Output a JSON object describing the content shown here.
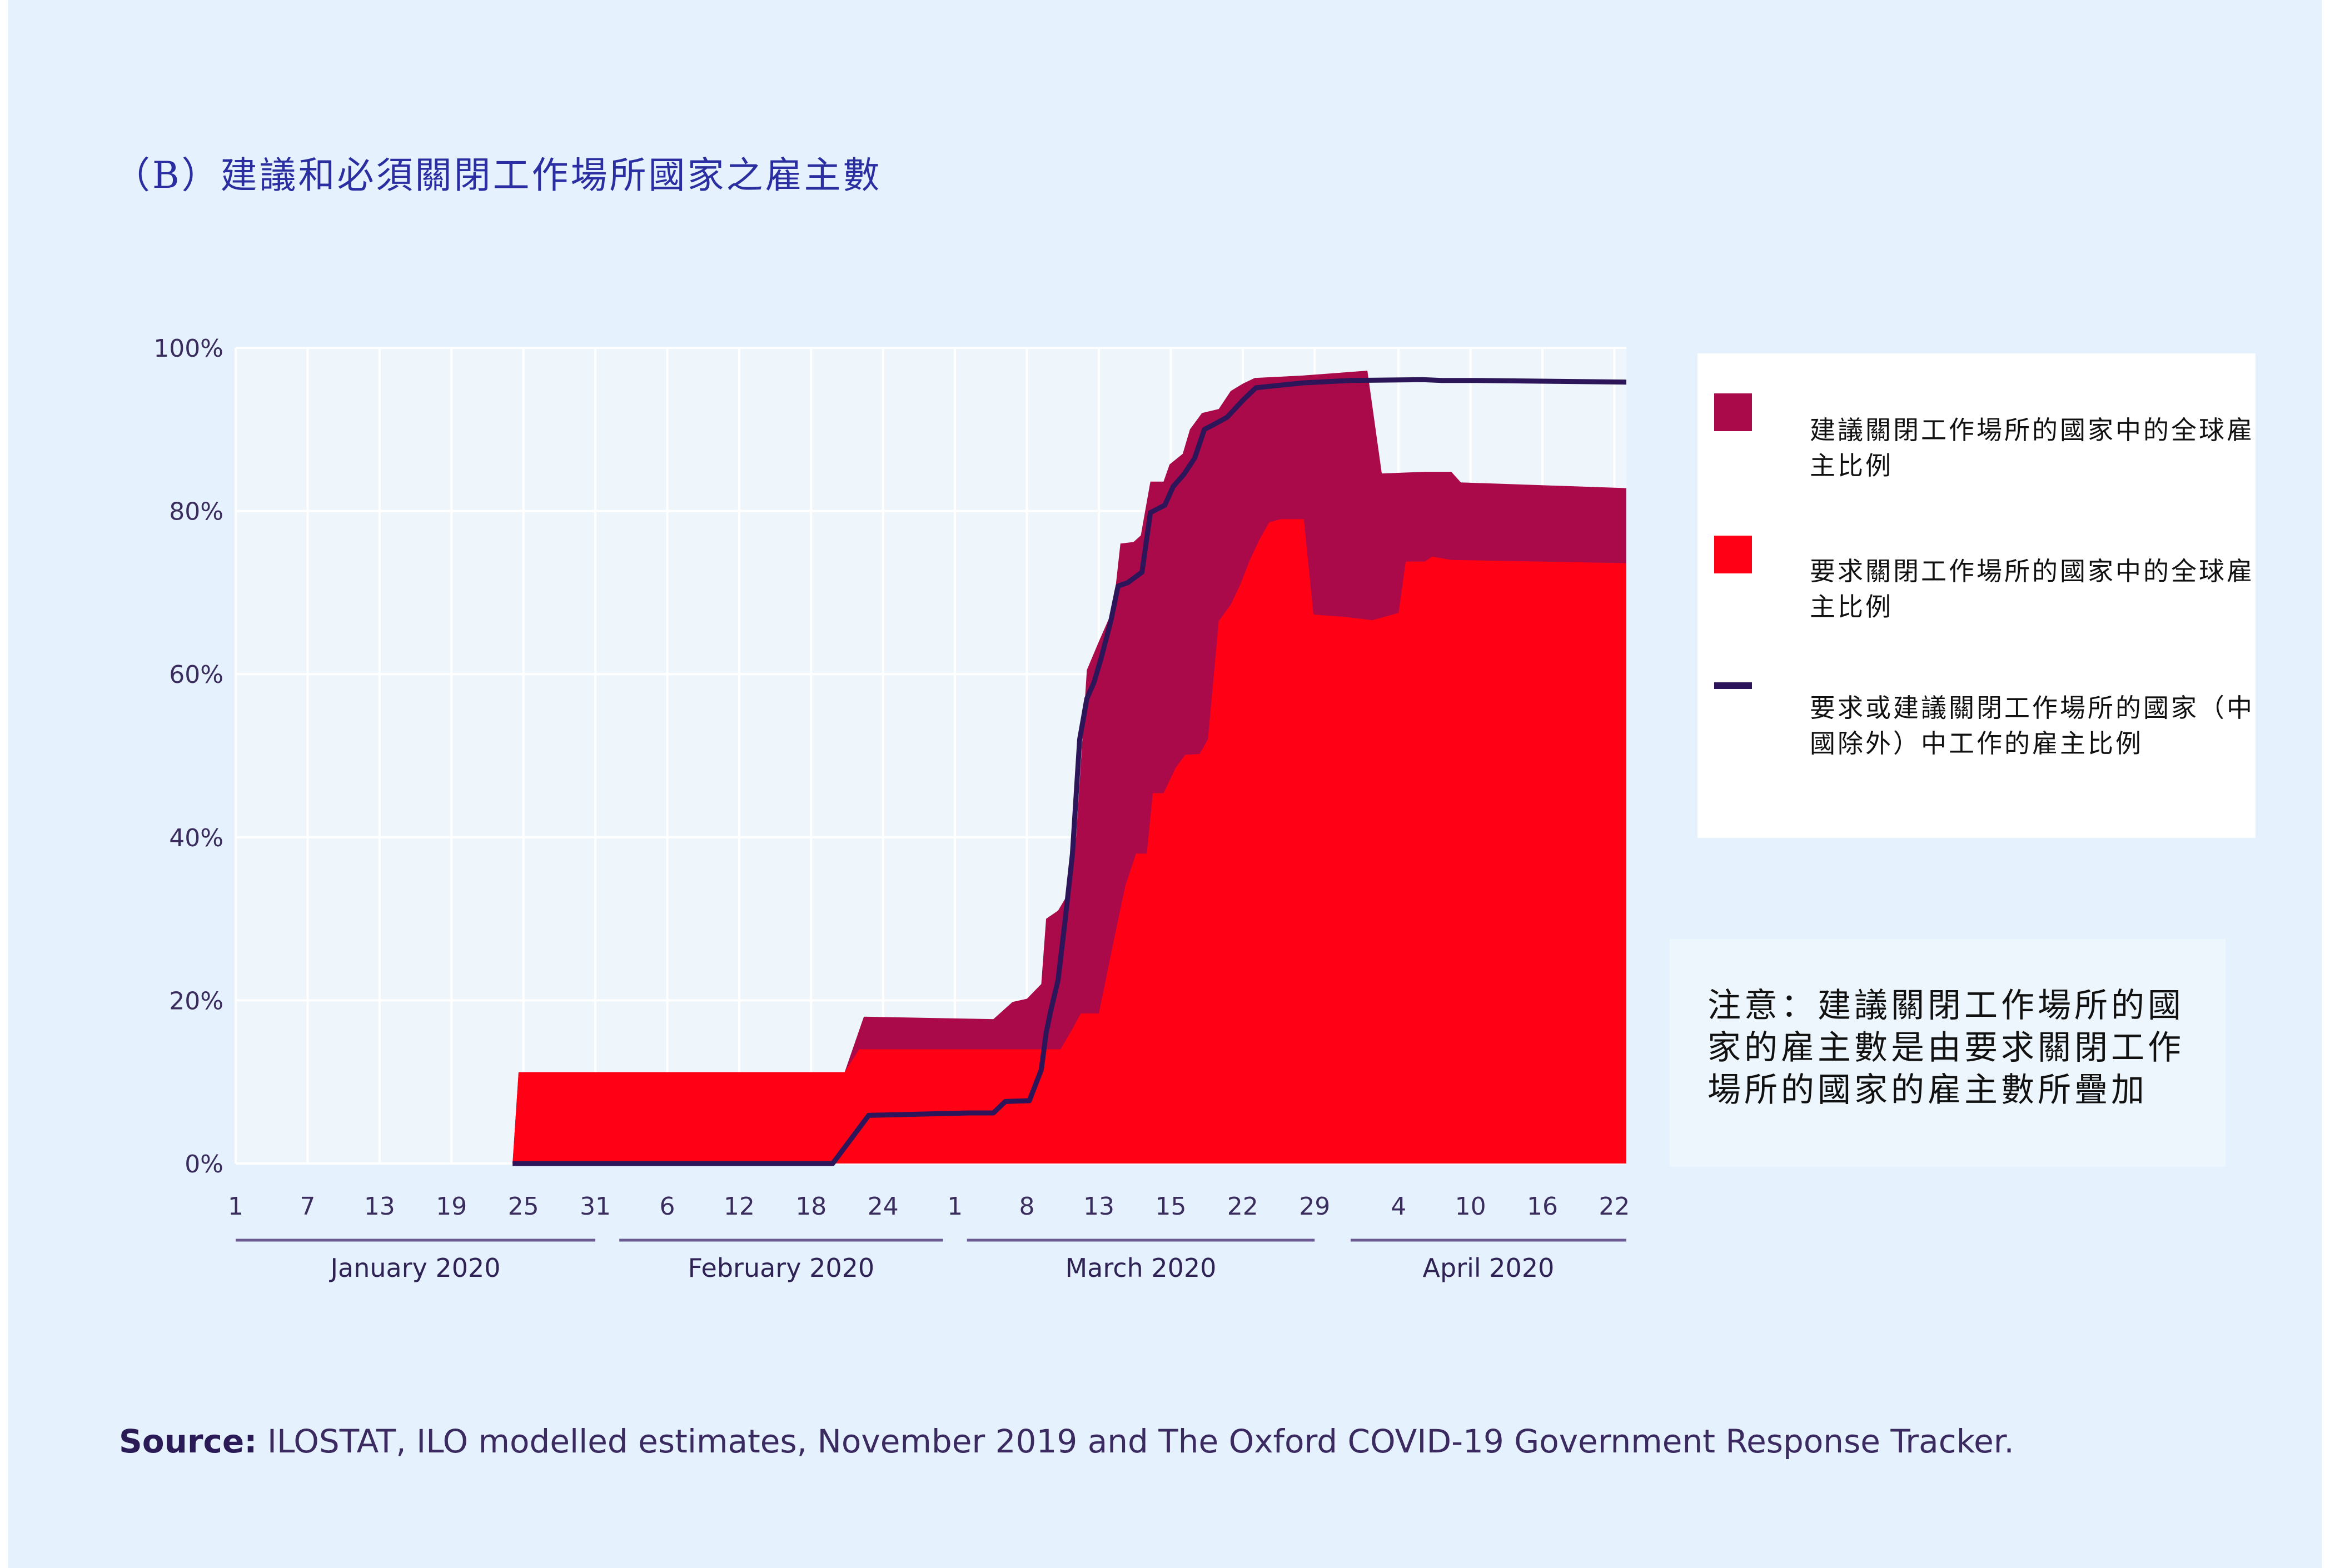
{
  "title": "（B）建議和必須關閉工作場所國家之雇主數",
  "legend": {
    "items": [
      {
        "label": "建議關閉工作場所的國家中的全球雇主比例",
        "color": "#aa0a4a"
      },
      {
        "label": "要求關閉工作場所的國家中的全球雇主比例",
        "color": "#ff0015"
      },
      {
        "label": "要求或建議關閉工作場所的國家（中國除外）中工作的雇主比例",
        "color": "#2c1558"
      }
    ]
  },
  "note": "注意：建議關閉工作場所的國家的雇主數是由要求關閉工作場所的國家的雇主數所疊加",
  "source": {
    "label": "Source:",
    "text": " ILOSTAT, ILO modelled estimates, November 2019 and The Oxford COVID-19 Government Response Tracker."
  },
  "chart_data": {
    "type": "area",
    "x_unit": "day index (0 = 1 January 2020)",
    "ylim": [
      0,
      100
    ],
    "y_ticks": [
      "0%",
      "20%",
      "40%",
      "60%",
      "80%",
      "100%"
    ],
    "y_tick_values": [
      0,
      20,
      40,
      60,
      80,
      100
    ],
    "x_ticks": [
      {
        "day": 0,
        "label": "1"
      },
      {
        "day": 6,
        "label": "7"
      },
      {
        "day": 12,
        "label": "13"
      },
      {
        "day": 18,
        "label": "19"
      },
      {
        "day": 24,
        "label": "25"
      },
      {
        "day": 30,
        "label": "31"
      },
      {
        "day": 36,
        "label": "6"
      },
      {
        "day": 42,
        "label": "12"
      },
      {
        "day": 48,
        "label": "18"
      },
      {
        "day": 54,
        "label": "24"
      },
      {
        "day": 60,
        "label": "1"
      },
      {
        "day": 66,
        "label": "8"
      },
      {
        "day": 72,
        "label": "13"
      },
      {
        "day": 78,
        "label": "15"
      },
      {
        "day": 84,
        "label": "22"
      },
      {
        "day": 90,
        "label": "29"
      },
      {
        "day": 97,
        "label": "4"
      },
      {
        "day": 103,
        "label": "10"
      },
      {
        "day": 109,
        "label": "16"
      },
      {
        "day": 115,
        "label": "22"
      }
    ],
    "x_max": 116,
    "month_groups": [
      {
        "label": "January 2020",
        "start": 0,
        "end": 30
      },
      {
        "label": "February 2020",
        "start": 32,
        "end": 59
      },
      {
        "label": "March 2020",
        "start": 61,
        "end": 90
      },
      {
        "label": "April 2020",
        "start": 93,
        "end": 116
      }
    ],
    "series": [
      {
        "name": "建議關閉工作場所的國家中的全球雇主比例",
        "kind": "area",
        "color": "#aa0a4a",
        "points": [
          [
            23.1,
            0
          ],
          [
            23.6,
            11.2
          ],
          [
            50.8,
            11.2
          ],
          [
            52.4,
            18
          ],
          [
            63.2,
            17.7
          ],
          [
            64.8,
            19.8
          ],
          [
            66,
            20.2
          ],
          [
            67.2,
            22
          ],
          [
            67.6,
            30
          ],
          [
            68.6,
            31
          ],
          [
            69.2,
            32.5
          ],
          [
            70.1,
            40
          ],
          [
            71,
            60.5
          ],
          [
            72,
            64
          ],
          [
            73.2,
            68
          ],
          [
            73.8,
            76
          ],
          [
            74.9,
            76.2
          ],
          [
            75.5,
            77
          ],
          [
            76.3,
            83.6
          ],
          [
            77.4,
            83.6
          ],
          [
            77.9,
            85.7
          ],
          [
            79,
            87
          ],
          [
            79.6,
            90
          ],
          [
            80.6,
            92
          ],
          [
            82,
            92.5
          ],
          [
            83,
            94.7
          ],
          [
            84,
            95.6
          ],
          [
            85,
            96.3
          ],
          [
            89,
            96.6
          ],
          [
            94.4,
            97.2
          ],
          [
            95.6,
            84.6
          ],
          [
            99.2,
            84.8
          ],
          [
            101.4,
            84.8
          ],
          [
            102.2,
            83.5
          ],
          [
            116,
            82.8
          ],
          [
            116,
            0
          ]
        ]
      },
      {
        "name": "要求關閉工作場所的國家中的全球雇主比例",
        "kind": "area",
        "color": "#ff0015",
        "points": [
          [
            23.1,
            0
          ],
          [
            23.6,
            11.2
          ],
          [
            50.8,
            11.2
          ],
          [
            52,
            14
          ],
          [
            68.8,
            14
          ],
          [
            69.6,
            16
          ],
          [
            70.5,
            18.4
          ],
          [
            72,
            18.4
          ],
          [
            73.2,
            27
          ],
          [
            74.2,
            34
          ],
          [
            75.1,
            38
          ],
          [
            76,
            38
          ],
          [
            76.5,
            45.4
          ],
          [
            77.4,
            45.4
          ],
          [
            78.4,
            48.5
          ],
          [
            79.2,
            50.1
          ],
          [
            80.4,
            50.2
          ],
          [
            81.1,
            52
          ],
          [
            82,
            66.5
          ],
          [
            83,
            68.5
          ],
          [
            83.8,
            71
          ],
          [
            84.6,
            74
          ],
          [
            85.4,
            76.5
          ],
          [
            86.2,
            78.6
          ],
          [
            87.2,
            79
          ],
          [
            89.1,
            79
          ],
          [
            89.9,
            67.3
          ],
          [
            92.6,
            67
          ],
          [
            94.8,
            66.6
          ],
          [
            97,
            67.5
          ],
          [
            97.6,
            73.8
          ],
          [
            99.2,
            73.8
          ],
          [
            99.8,
            74.4
          ],
          [
            101.4,
            74
          ],
          [
            116,
            73.6
          ],
          [
            116,
            0
          ]
        ]
      },
      {
        "name": "要求或建議關閉工作場所的國家（中國除外）中工作的雇主比例",
        "kind": "line",
        "color": "#2c1558",
        "points": [
          [
            23.1,
            0
          ],
          [
            49.8,
            0
          ],
          [
            52.8,
            5.9
          ],
          [
            61.2,
            6.2
          ],
          [
            63.2,
            6.2
          ],
          [
            64.2,
            7.6
          ],
          [
            66.2,
            7.7
          ],
          [
            67.2,
            11.5
          ],
          [
            67.6,
            16
          ],
          [
            68,
            18.8
          ],
          [
            68.6,
            22.5
          ],
          [
            69.2,
            30
          ],
          [
            69.8,
            38
          ],
          [
            70.4,
            52
          ],
          [
            71,
            57
          ],
          [
            71.6,
            59
          ],
          [
            72.2,
            62
          ],
          [
            73,
            66.5
          ],
          [
            73.6,
            70.8
          ],
          [
            74.4,
            71.2
          ],
          [
            75.6,
            72.5
          ],
          [
            76.3,
            79.8
          ],
          [
            77.5,
            80.7
          ],
          [
            78.2,
            83
          ],
          [
            79.1,
            84.5
          ],
          [
            80,
            86.5
          ],
          [
            80.8,
            90
          ],
          [
            81.6,
            90.6
          ],
          [
            82.7,
            91.5
          ],
          [
            84.1,
            93.7
          ],
          [
            85.1,
            95.1
          ],
          [
            89,
            95.7
          ],
          [
            93,
            96
          ],
          [
            99,
            96.1
          ],
          [
            100.6,
            96
          ],
          [
            103.5,
            96
          ],
          [
            116,
            95.8
          ]
        ]
      }
    ]
  }
}
